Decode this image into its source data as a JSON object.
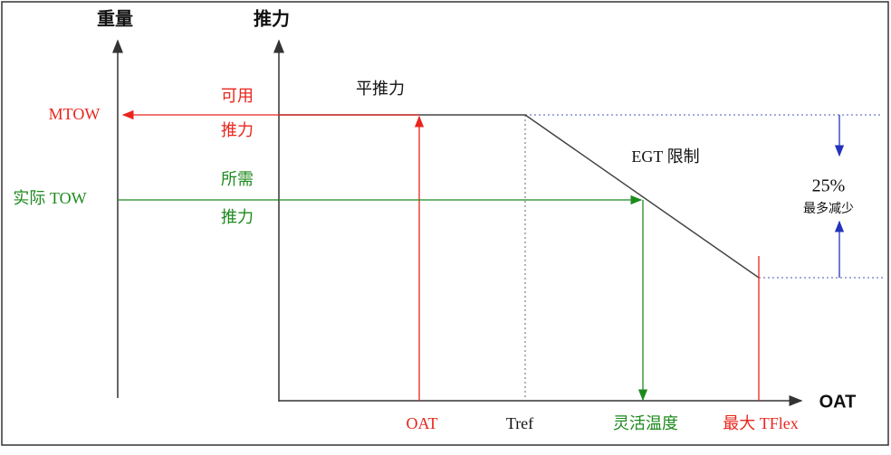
{
  "axes": {
    "weight": "重量",
    "thrust": "推力",
    "oat": "OAT"
  },
  "weight_labels": {
    "mtow": "MTOW",
    "actual_tow": "实际 TOW"
  },
  "thrust_labels": {
    "available_1": "可用",
    "available_2": "推力",
    "required_1": "所需",
    "required_2": "推力"
  },
  "curve_labels": {
    "flat": "平推力",
    "egt": "EGT 限制"
  },
  "reduction": {
    "percent": "25%",
    "text": "最多减少"
  },
  "temperature_labels": {
    "oat": "OAT",
    "tref": "Tref",
    "flex": "灵活温度",
    "max_flex": "最大 TFlex"
  }
}
